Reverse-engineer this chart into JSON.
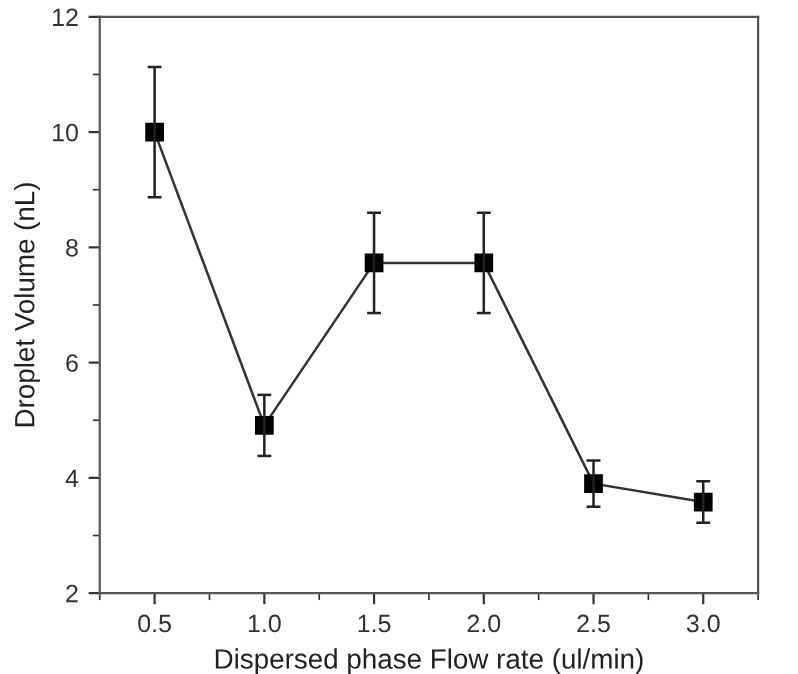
{
  "chart_data": {
    "type": "line",
    "xlabel": "Dispersed phase Flow rate (ul/min)",
    "ylabel": "Droplet Volume (nL)",
    "x": [
      0.5,
      1.0,
      1.5,
      2.0,
      2.5,
      3.0
    ],
    "series": [
      {
        "color": "#000000",
        "values": [
          10.0,
          4.91,
          7.73,
          7.73,
          3.9,
          3.58
        ],
        "errors": [
          1.13,
          0.53,
          0.87,
          0.87,
          0.4,
          0.36
        ]
      }
    ],
    "xlim": [
      0.25,
      3.25
    ],
    "xticks": [
      {
        "value": 0.5,
        "label": "0.5"
      },
      {
        "value": 1.0,
        "label": "1.0"
      },
      {
        "value": 1.5,
        "label": "1.5"
      },
      {
        "value": 2.0,
        "label": "2.0"
      },
      {
        "value": 2.5,
        "label": "2.5"
      },
      {
        "value": 3.0,
        "label": "3.0"
      }
    ],
    "ylim": [
      2,
      12
    ],
    "yticks": [
      2,
      4,
      6,
      8,
      10,
      12
    ],
    "marker": "square",
    "line_style": "solid",
    "grid": false,
    "legend": false
  }
}
